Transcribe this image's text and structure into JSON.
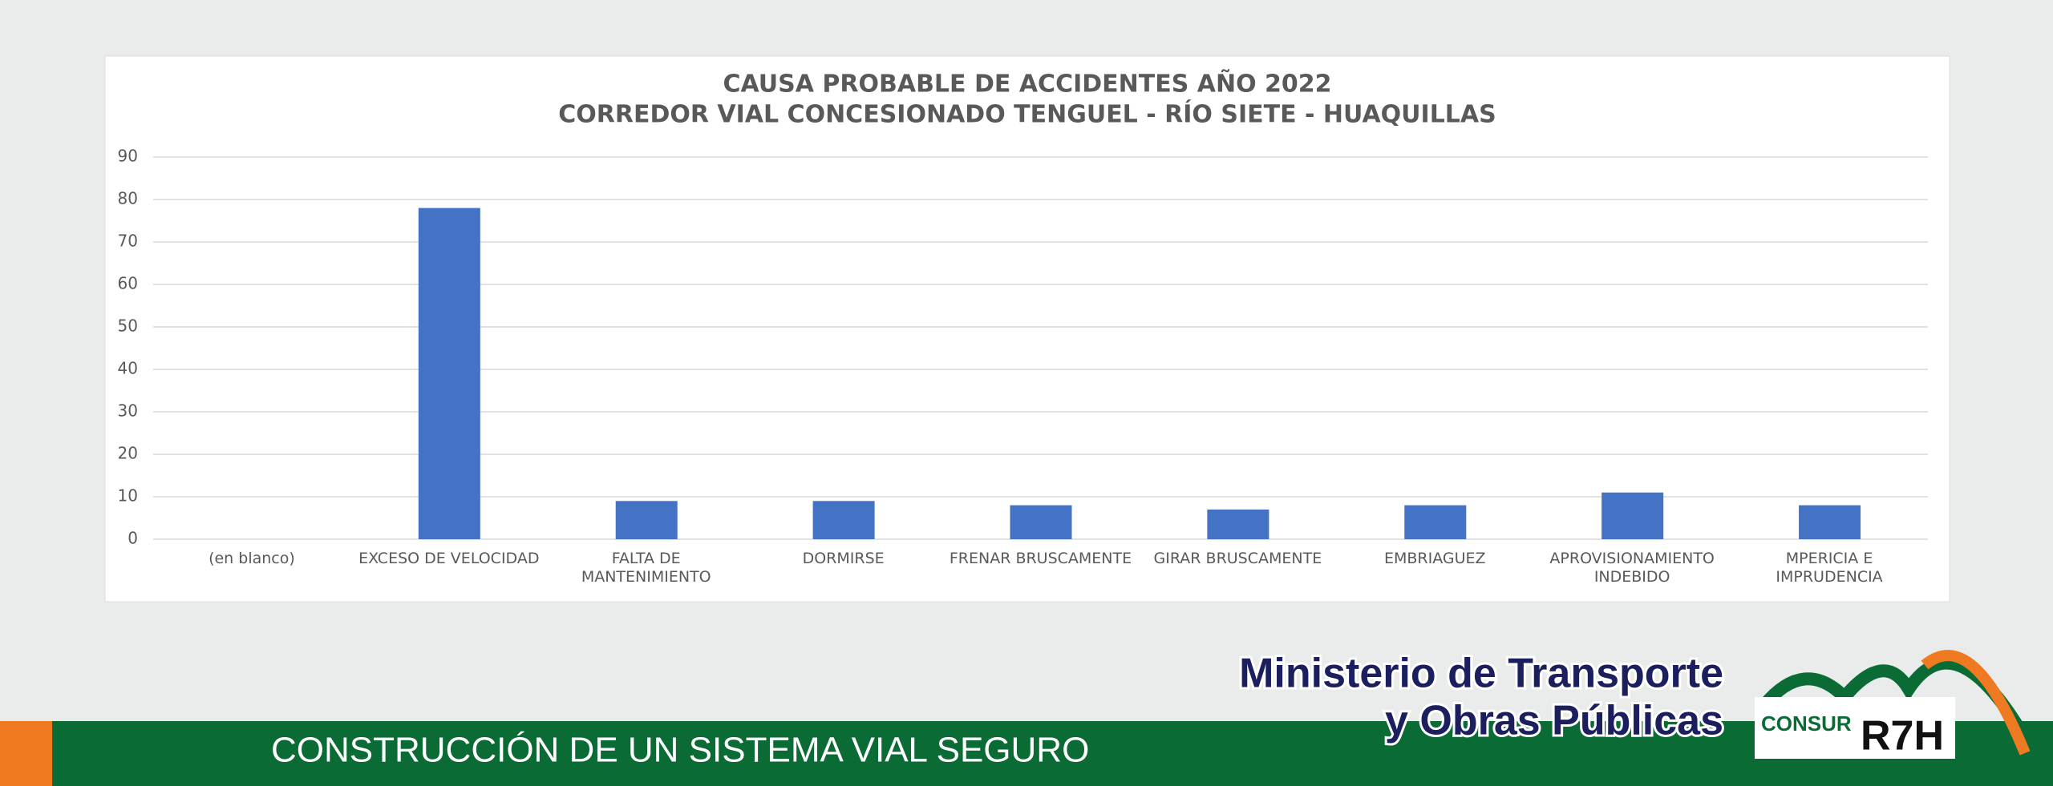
{
  "chart_data": {
    "type": "bar",
    "title": "CAUSA PROBABLE DE ACCIDENTES AÑO 2022",
    "subtitle": "CORREDOR VIAL CONCESIONADO TENGUEL - RÍO SIETE - HUAQUILLAS",
    "categories": [
      "(en blanco)",
      "EXCESO DE VELOCIDAD",
      "FALTA DE\nMANTENIMIENTO",
      "DORMIRSE",
      "FRENAR BRUSCAMENTE",
      "GIRAR BRUSCAMENTE",
      "EMBRIAGUEZ",
      "APROVISIONAMIENTO\nINDEBIDO",
      "MPERICIA E IMPRUDENCIA"
    ],
    "values": [
      0,
      78,
      9,
      9,
      8,
      7,
      8,
      11,
      8
    ],
    "color": "#4472c4",
    "ylim": [
      0,
      90
    ],
    "yticks": [
      0,
      10,
      20,
      30,
      40,
      50,
      60,
      70,
      80,
      90
    ],
    "grid": true
  },
  "footer": {
    "banner": "CONSTRUCCIÓN DE UN SISTEMA VIAL SEGURO",
    "ministry_line1": "Ministerio de Transporte",
    "ministry_line2": "y Obras Públicas",
    "logo_small": "CONSUR",
    "logo_big": "R7H"
  }
}
